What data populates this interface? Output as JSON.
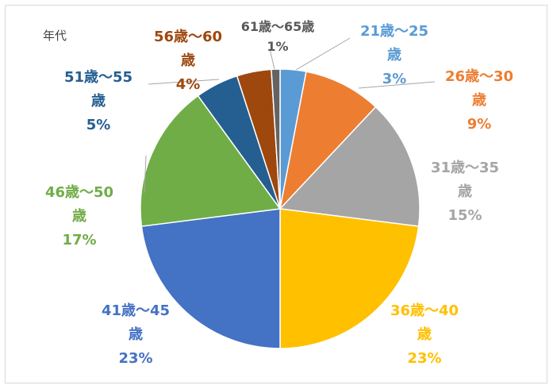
{
  "chart_data": {
    "type": "pie",
    "title": "年代",
    "start_angle_deg": 0,
    "direction": "clockwise",
    "legend": "none",
    "slices": [
      {
        "label": "21歳～25歳",
        "value": 3,
        "percent_text": "3%",
        "color": "#5b9bd5"
      },
      {
        "label": "26歳～30歳",
        "value": 9,
        "percent_text": "9%",
        "color": "#ed7d31"
      },
      {
        "label": "31歳～35歳",
        "value": 15,
        "percent_text": "15%",
        "color": "#a5a5a5"
      },
      {
        "label": "36歳～40歳",
        "value": 23,
        "percent_text": "23%",
        "color": "#ffc000"
      },
      {
        "label": "41歳～45歳",
        "value": 23,
        "percent_text": "23%",
        "color": "#4472c4"
      },
      {
        "label": "46歳～50歳",
        "value": 17,
        "percent_text": "17%",
        "color": "#70ad47"
      },
      {
        "label": "51歳～55歳",
        "value": 5,
        "percent_text": "5%",
        "color": "#255e91"
      },
      {
        "label": "56歳～60歳",
        "value": 4,
        "percent_text": "4%",
        "color": "#9e480e"
      },
      {
        "label": "61歳～65歳",
        "value": 1,
        "percent_text": "1%",
        "color": "#636363"
      }
    ]
  }
}
